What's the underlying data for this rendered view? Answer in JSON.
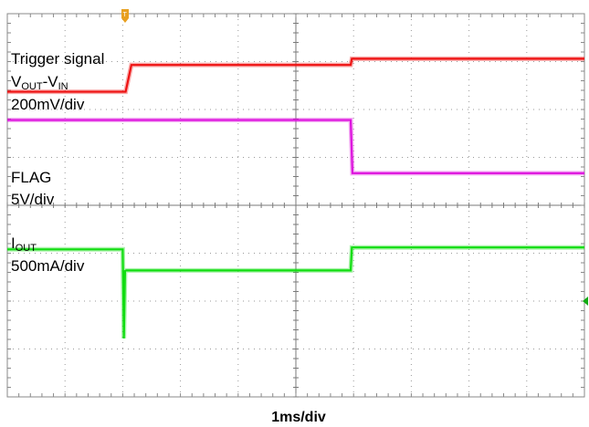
{
  "chart_data": {
    "type": "line",
    "title": "",
    "xlabel": "1ms/div",
    "ylabel": "",
    "grid": true,
    "divisions": {
      "x": 10,
      "y": 8
    },
    "xlim": [
      0,
      10
    ],
    "ylim": [
      0,
      8
    ],
    "colors": {
      "vout": "#ee1111",
      "flag": "#dd11dd",
      "iout": "#11dd11",
      "grid": "#9a9a9a",
      "trigger_marker": "#e8a020",
      "edge_marker": "#11aa11"
    },
    "channel_labels": {
      "trigger": "Trigger signal",
      "vout_main": "V",
      "vout_sub1": "OUT",
      "vout_mid": "-V",
      "vout_sub2": "IN",
      "vout_scale": "200mV/div",
      "flag": "FLAG",
      "flag_scale": "5V/div",
      "iout_main": "I",
      "iout_sub": "OUT",
      "iout_scale": "500mA/div"
    },
    "series": [
      {
        "key": "vout",
        "x": [
          0,
          2.05,
          2.15,
          5.95,
          5.97,
          10
        ],
        "y": [
          6.37,
          6.37,
          6.93,
          6.93,
          7.06,
          7.06
        ]
      },
      {
        "key": "flag",
        "x": [
          0,
          5.95,
          5.98,
          10
        ],
        "y": [
          5.78,
          5.78,
          4.67,
          4.67
        ]
      },
      {
        "key": "iout",
        "x": [
          0,
          2.0,
          2.02,
          2.04,
          2.06,
          5.95,
          5.97,
          10
        ],
        "y": [
          3.08,
          3.08,
          1.22,
          2.63,
          2.64,
          2.64,
          3.12,
          3.12
        ]
      }
    ]
  }
}
